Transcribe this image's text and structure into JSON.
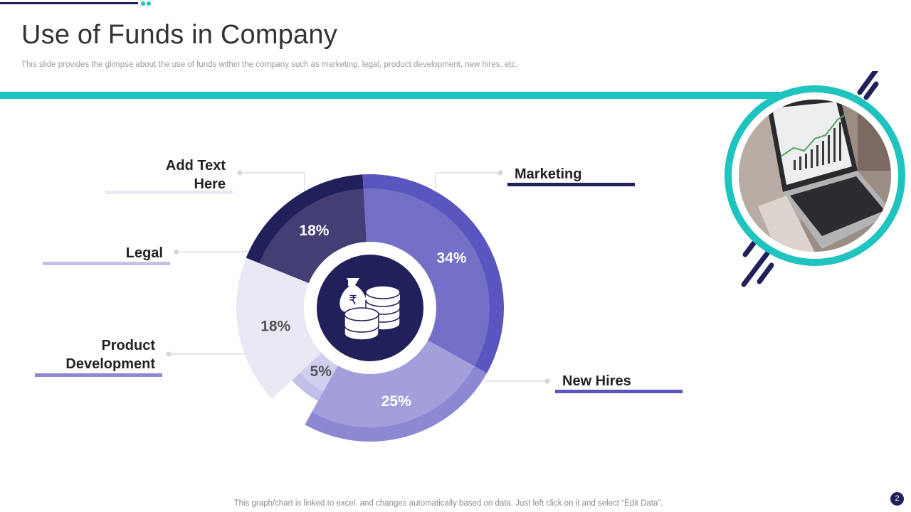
{
  "slide": {
    "title": "Use of Funds in Company",
    "subtitle": "This slide provides the glimpse about the use of funds within the company such as marketing, legal, product development, new hires, etc.",
    "footer": "This graph/chart is linked to excel,  and changes automatically based on data. Just left click on it and select “Edit Data”.",
    "page_number": "2"
  },
  "colors": {
    "teal": "#1fc4c0",
    "navy": "#22205a"
  },
  "icons": {
    "center": "money-bag-and-coins-icon",
    "currency": "₹"
  },
  "chart_data": {
    "type": "pie",
    "title": "",
    "values_unit": "%",
    "segments": [
      {
        "label": "Marketing",
        "value": 18,
        "value_label": "18%",
        "color": "#22205a",
        "inner_color": "#433e74"
      },
      {
        "label": "New Hires",
        "value": 34,
        "value_label": "34%",
        "color": "#5b55bf",
        "inner_color": "#7470c8"
      },
      {
        "label": "Product Development",
        "value": 25,
        "value_label": "25%",
        "color": "#8c88d2",
        "inner_color": "#a29fdb"
      },
      {
        "label": "Legal",
        "value": 5,
        "value_label": "5%",
        "color": "#c2c0e9",
        "inner_color": "#d1cfee"
      },
      {
        "label": "Add Text Here",
        "value": 18,
        "value_label": "18%",
        "color": "#e9e8f5",
        "inner_color": "#e9e8f5"
      }
    ]
  }
}
